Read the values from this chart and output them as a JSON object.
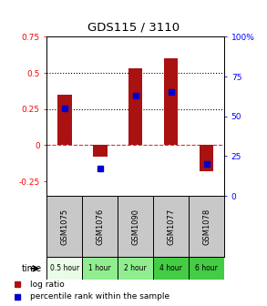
{
  "title": "GDS115 / 3110",
  "samples": [
    "GSM1075",
    "GSM1076",
    "GSM1090",
    "GSM1077",
    "GSM1078"
  ],
  "time_labels": [
    "0.5 hour",
    "1 hour",
    "2 hour",
    "4 hour",
    "6 hour"
  ],
  "time_colors": [
    "#e8fce8",
    "#90ee90",
    "#90ee90",
    "#44cc44",
    "#44cc44"
  ],
  "log_ratio": [
    0.35,
    -0.08,
    0.53,
    0.6,
    -0.18
  ],
  "percentile_pct": [
    55,
    17,
    63,
    65,
    20
  ],
  "bar_color": "#aa1111",
  "dot_color": "#0000cc",
  "ylim_left": [
    -0.35,
    0.75
  ],
  "ylim_right": [
    0,
    100
  ],
  "yticks_left": [
    -0.25,
    0,
    0.25,
    0.5,
    0.75
  ],
  "ytick_labels_left": [
    "-0.25",
    "0",
    "0.25",
    "0.5",
    "0.75"
  ],
  "yticks_right": [
    0,
    25,
    50,
    75,
    100
  ],
  "ytick_labels_right": [
    "0",
    "25",
    "50",
    "75",
    "100%"
  ],
  "hlines": [
    0.25,
    0.5
  ],
  "zero_line_color": "#cc3333",
  "bg_color": "#ffffff",
  "sample_bg": "#c8c8c8",
  "legend_log_label": "log ratio",
  "legend_pct_label": "percentile rank within the sample",
  "bar_width": 0.4
}
